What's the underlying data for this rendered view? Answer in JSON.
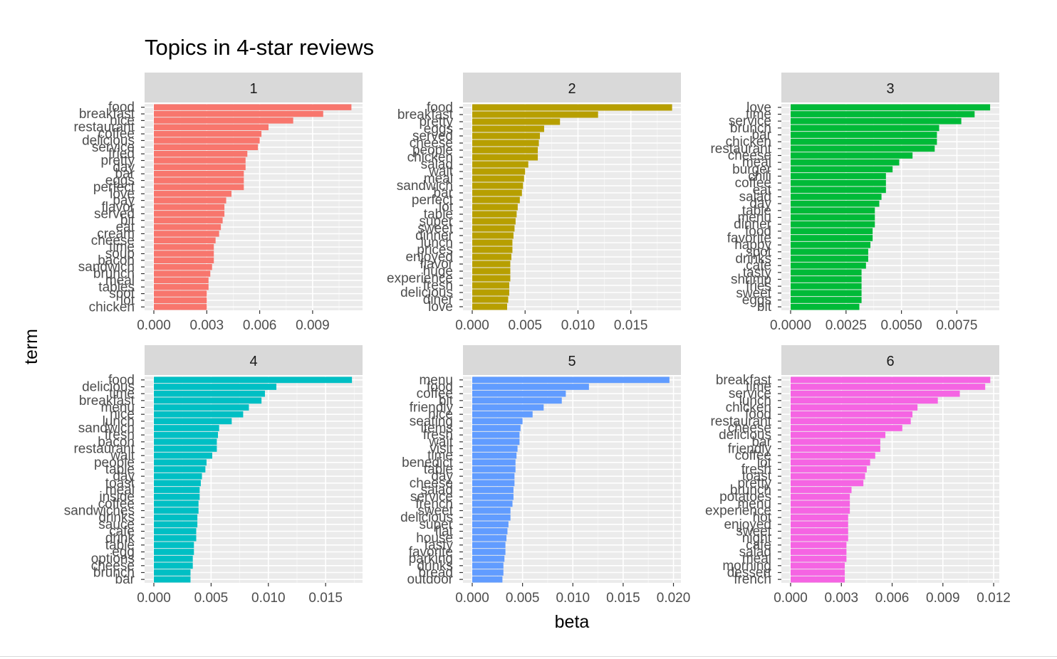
{
  "chart_data": {
    "type": "bar",
    "orientation": "horizontal",
    "title": "Topics in 4-star reviews",
    "xlabel": "beta",
    "ylabel": "term",
    "grid": true,
    "legend": "none",
    "facets": [
      {
        "label": "1",
        "color": "#F8766D",
        "xlim": [
          0,
          0.01175
        ],
        "xticks": [
          0,
          0.003,
          0.006,
          0.009
        ],
        "xtick_labels": [
          "0.000",
          "0.003",
          "0.006",
          "0.009"
        ],
        "categories": [
          "food",
          "breakfast",
          "nice",
          "restaurant",
          "coffee",
          "delicious",
          "service",
          "fried",
          "pretty",
          "day",
          "bar",
          "eggs",
          "perfect",
          "love",
          "pay",
          "flavor",
          "served",
          "bit",
          "eat",
          "cream",
          "cheese",
          "time",
          "soup",
          "bacon",
          "sandwich",
          "brunch",
          "meal",
          "tables",
          "spot",
          "lot",
          "chicken"
        ],
        "values": [
          0.0112,
          0.0096,
          0.0079,
          0.0065,
          0.0061,
          0.006,
          0.0059,
          0.0053,
          0.0052,
          0.0052,
          0.0051,
          0.0051,
          0.0051,
          0.0044,
          0.0041,
          0.004,
          0.004,
          0.0039,
          0.0038,
          0.0037,
          0.0035,
          0.0034,
          0.0034,
          0.0034,
          0.0033,
          0.0032,
          0.0031,
          0.0031,
          0.003,
          0.003,
          0.003
        ]
      },
      {
        "label": "2",
        "color": "#B79F00",
        "xlim": [
          0,
          0.0196
        ],
        "xticks": [
          0,
          0.005,
          0.01,
          0.015
        ],
        "xtick_labels": [
          "0.000",
          "0.005",
          "0.010",
          "0.015"
        ],
        "categories": [
          "food",
          "breakfast",
          "pretty",
          "eggs",
          "served",
          "cheese",
          "people",
          "chicken",
          "salad",
          "wait",
          "meal",
          "sandwich",
          "bar",
          "perfect",
          "lot",
          "table",
          "super",
          "sweet",
          "dinner",
          "lunch",
          "prices",
          "enjoyed",
          "flavor",
          "huge",
          "experience",
          "fresh",
          "delicious",
          "diner",
          "love"
        ],
        "values": [
          0.0189,
          0.0119,
          0.0083,
          0.0068,
          0.0064,
          0.0063,
          0.0062,
          0.0062,
          0.0053,
          0.005,
          0.0049,
          0.0048,
          0.0047,
          0.0045,
          0.0043,
          0.0042,
          0.0041,
          0.004,
          0.0039,
          0.0038,
          0.0038,
          0.0037,
          0.0036,
          0.0036,
          0.0036,
          0.0035,
          0.0035,
          0.0034,
          0.0033
        ]
      },
      {
        "label": "3",
        "color": "#00BA38",
        "xlim": [
          0,
          0.00935
        ],
        "xticks": [
          0,
          0.0025,
          0.005,
          0.0075
        ],
        "xtick_labels": [
          "0.0000",
          "0.0025",
          "0.0050",
          "0.0075"
        ],
        "categories": [
          "love",
          "time",
          "service",
          "brunch",
          "bar",
          "chicken",
          "restaurant",
          "cheese",
          "meal",
          "burger",
          "chili",
          "coffee",
          "eat",
          "salad",
          "day",
          "table",
          "menu",
          "dinner",
          "food",
          "favorite",
          "happy",
          "spot",
          "drinks",
          "cafe",
          "tasty",
          "shrimp",
          "fries",
          "sweet",
          "eggs",
          "bit"
        ],
        "values": [
          0.009,
          0.0083,
          0.0077,
          0.0067,
          0.0066,
          0.0066,
          0.0065,
          0.0055,
          0.0049,
          0.0046,
          0.0043,
          0.0043,
          0.0043,
          0.0041,
          0.004,
          0.0038,
          0.0038,
          0.0038,
          0.0037,
          0.0037,
          0.0036,
          0.0035,
          0.0035,
          0.0034,
          0.0032,
          0.0032,
          0.0032,
          0.0032,
          0.0032,
          0.0031
        ]
      },
      {
        "label": "4",
        "color": "#00BFC4",
        "xlim": [
          0,
          0.0181
        ],
        "xticks": [
          0,
          0.005,
          0.01,
          0.015
        ],
        "xtick_labels": [
          "0.000",
          "0.005",
          "0.010",
          "0.015"
        ],
        "categories": [
          "food",
          "delicious",
          "time",
          "breakfast",
          "menu",
          "nice",
          "lunch",
          "sandwich",
          "fresh",
          "bacon",
          "restaurant",
          "wait",
          "people",
          "table",
          "day",
          "toast",
          "meal",
          "inside",
          "coffee",
          "sandwiches",
          "drinks",
          "sauce",
          "cafe",
          "drink",
          "table",
          "egg",
          "options",
          "cheese",
          "brunch",
          "bar"
        ],
        "values": [
          0.0173,
          0.0107,
          0.0097,
          0.0094,
          0.0083,
          0.0078,
          0.0068,
          0.0057,
          0.0056,
          0.0055,
          0.0055,
          0.0051,
          0.0046,
          0.0045,
          0.0042,
          0.0041,
          0.004,
          0.004,
          0.0039,
          0.0039,
          0.0038,
          0.0038,
          0.0037,
          0.0037,
          0.0035,
          0.0035,
          0.0034,
          0.0034,
          0.0032,
          0.0032
        ]
      },
      {
        "label": "5",
        "color": "#619CFF",
        "xlim": [
          0,
          0.0206
        ],
        "xticks": [
          0,
          0.005,
          0.01,
          0.015,
          0.02
        ],
        "xtick_labels": [
          "0.000",
          "0.005",
          "0.010",
          "0.015",
          "0.020"
        ],
        "categories": [
          "menu",
          "food",
          "coffee",
          "bit",
          "friendly",
          "nice",
          "seating",
          "items",
          "fresh",
          "wait",
          "visit",
          "time",
          "benedict",
          "table",
          "day",
          "cheese",
          "salad",
          "service",
          "french",
          "sweet",
          "delicious",
          "super",
          "flat",
          "house",
          "tasty",
          "favorite",
          "parking",
          "drinks",
          "bread",
          "outdoor"
        ],
        "values": [
          0.0196,
          0.0116,
          0.0093,
          0.0089,
          0.0071,
          0.006,
          0.005,
          0.0048,
          0.0047,
          0.0047,
          0.0045,
          0.0044,
          0.0043,
          0.0043,
          0.0042,
          0.0042,
          0.0041,
          0.0041,
          0.004,
          0.0038,
          0.0038,
          0.0036,
          0.0035,
          0.0034,
          0.0033,
          0.0033,
          0.0032,
          0.0031,
          0.0031,
          0.003
        ]
      },
      {
        "label": "6",
        "color": "#F564E3",
        "xlim": [
          0,
          0.01225
        ],
        "xticks": [
          0,
          0.003,
          0.006,
          0.009,
          0.012
        ],
        "xtick_labels": [
          "0.000",
          "0.003",
          "0.006",
          "0.009",
          "0.012"
        ],
        "categories": [
          "breakfast",
          "time",
          "service",
          "lunch",
          "chicken",
          "food",
          "restaurant",
          "cheese",
          "delicious",
          "bar",
          "friendly",
          "coffee",
          "lot",
          "fresh",
          "toast",
          "pretty",
          "brunch",
          "potatoes",
          "menu",
          "experience",
          "hot",
          "enjoyed",
          "sweet",
          "night",
          "cafe",
          "salad",
          "meal",
          "morning",
          "dessert",
          "french"
        ],
        "values": [
          0.0118,
          0.0115,
          0.01,
          0.0087,
          0.0075,
          0.0072,
          0.0071,
          0.0066,
          0.0056,
          0.0053,
          0.0053,
          0.005,
          0.0047,
          0.0045,
          0.0044,
          0.0043,
          0.0036,
          0.0035,
          0.0035,
          0.0035,
          0.0034,
          0.0034,
          0.0034,
          0.0034,
          0.0033,
          0.0033,
          0.0033,
          0.0032,
          0.0032,
          0.0032
        ]
      }
    ]
  }
}
